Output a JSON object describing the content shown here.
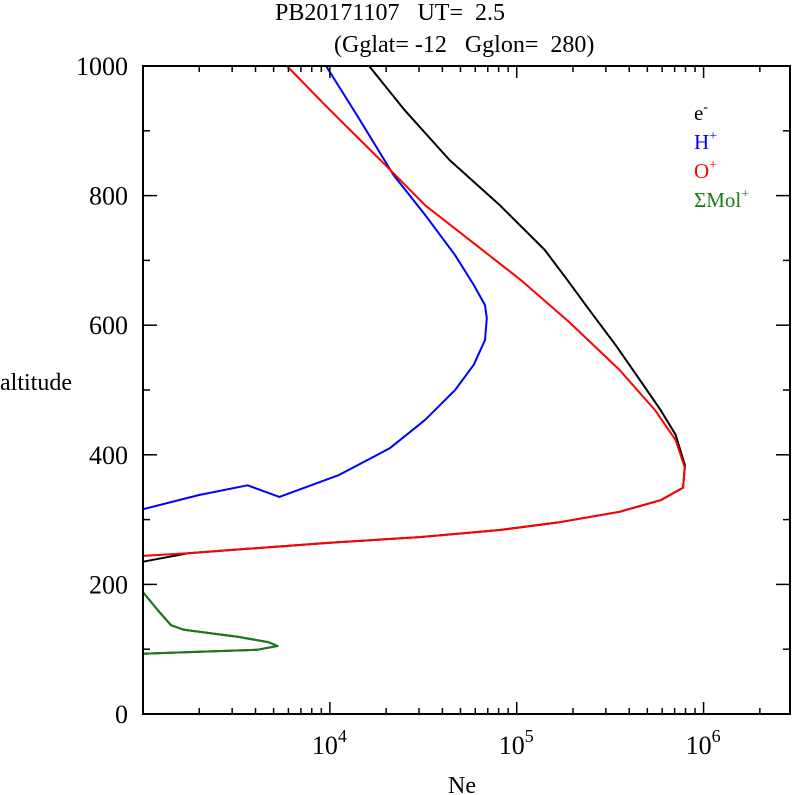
{
  "chart_data": {
    "type": "line",
    "title_line1": "PB20171107   UT=  2.5",
    "title_line2": "(Gglat= -12   Gglon=  280)",
    "xlabel": "Ne",
    "ylabel": "altitude",
    "xscale": "log",
    "xlim": [
      1000,
      2900000
    ],
    "ylim": [
      0,
      1000
    ],
    "yticks_major": [
      0,
      200,
      400,
      600,
      800,
      1000
    ],
    "yticks_minor": [
      100,
      300,
      500,
      700,
      900
    ],
    "xtick_labels": [
      {
        "base": "10",
        "exp": "4",
        "value": 10000
      },
      {
        "base": "10",
        "exp": "5",
        "value": 100000
      },
      {
        "base": "10",
        "exp": "6",
        "value": 1000000
      }
    ],
    "legend_placement": "top-right",
    "series": [
      {
        "name": "e-",
        "label": "e",
        "sup": "-",
        "color": "#000000",
        "segments": [
          [
            [
              4.21,
              1000
            ],
            [
              4.4,
              932
            ],
            [
              4.64,
              855
            ],
            [
              4.91,
              785
            ],
            [
              5.15,
              716
            ],
            [
              5.27,
              670
            ],
            [
              5.39,
              623
            ],
            [
              5.53,
              569
            ],
            [
              5.66,
              515
            ],
            [
              5.77,
              469
            ],
            [
              5.85,
              431
            ],
            [
              5.9,
              384
            ],
            [
              5.89,
              349
            ],
            [
              5.77,
              330
            ],
            [
              5.55,
              312
            ],
            [
              5.23,
              296
            ],
            [
              4.91,
              284
            ],
            [
              4.48,
              273
            ],
            [
              3.99,
              264
            ],
            [
              3.56,
              255
            ],
            [
              3.24,
              248
            ],
            [
              3.0,
              235
            ]
          ],
          [
            [
              3.0,
              188
            ],
            [
              3.08,
              160
            ],
            [
              3.15,
              137
            ],
            [
              3.22,
              130
            ],
            [
              3.51,
              119
            ],
            [
              3.67,
              111
            ],
            [
              3.72,
              105
            ],
            [
              3.61,
              99
            ],
            [
              3.3,
              96
            ],
            [
              3.0,
              93
            ]
          ]
        ]
      },
      {
        "name": "H+",
        "label": "H",
        "sup": "+",
        "color": "#0000ff",
        "segments": [
          [
            [
              3.98,
              1000
            ],
            [
              4.16,
              917
            ],
            [
              4.34,
              832
            ],
            [
              4.51,
              770
            ],
            [
              4.67,
              708
            ],
            [
              4.77,
              662
            ],
            [
              4.83,
              631
            ],
            [
              4.84,
              611
            ],
            [
              4.83,
              577
            ],
            [
              4.77,
              539
            ],
            [
              4.67,
              500
            ],
            [
              4.51,
              454
            ],
            [
              4.32,
              410
            ],
            [
              4.05,
              369
            ],
            [
              3.73,
              335
            ],
            [
              3.56,
              353
            ],
            [
              3.3,
              338
            ],
            [
              3.0,
              316
            ]
          ]
        ]
      },
      {
        "name": "O+",
        "label": "O",
        "sup": "+",
        "color": "#ff0000",
        "segments": [
          [
            [
              3.77,
              1000
            ],
            [
              3.99,
              935
            ],
            [
              4.26,
              858
            ],
            [
              4.51,
              785
            ],
            [
              4.75,
              731
            ],
            [
              5.02,
              670
            ],
            [
              5.28,
              605
            ],
            [
              5.55,
              531
            ],
            [
              5.74,
              469
            ],
            [
              5.85,
              423
            ],
            [
              5.9,
              380
            ],
            [
              5.89,
              349
            ],
            [
              5.77,
              330
            ],
            [
              5.55,
              312
            ],
            [
              5.23,
              296
            ],
            [
              4.91,
              284
            ],
            [
              4.48,
              273
            ],
            [
              3.99,
              264
            ],
            [
              3.56,
              255
            ],
            [
              3.24,
              248
            ],
            [
              3.0,
              244
            ]
          ]
        ]
      },
      {
        "name": "ΣMol+",
        "label": "ΣMol",
        "sup": "+",
        "color": "#1a7a1a",
        "segments": [
          [
            [
              3.0,
              188
            ],
            [
              3.08,
              160
            ],
            [
              3.15,
              137
            ],
            [
              3.22,
              130
            ],
            [
              3.51,
              119
            ],
            [
              3.67,
              111
            ],
            [
              3.72,
              105
            ],
            [
              3.61,
              99
            ],
            [
              3.3,
              96
            ],
            [
              3.0,
              93
            ]
          ]
        ]
      }
    ]
  }
}
